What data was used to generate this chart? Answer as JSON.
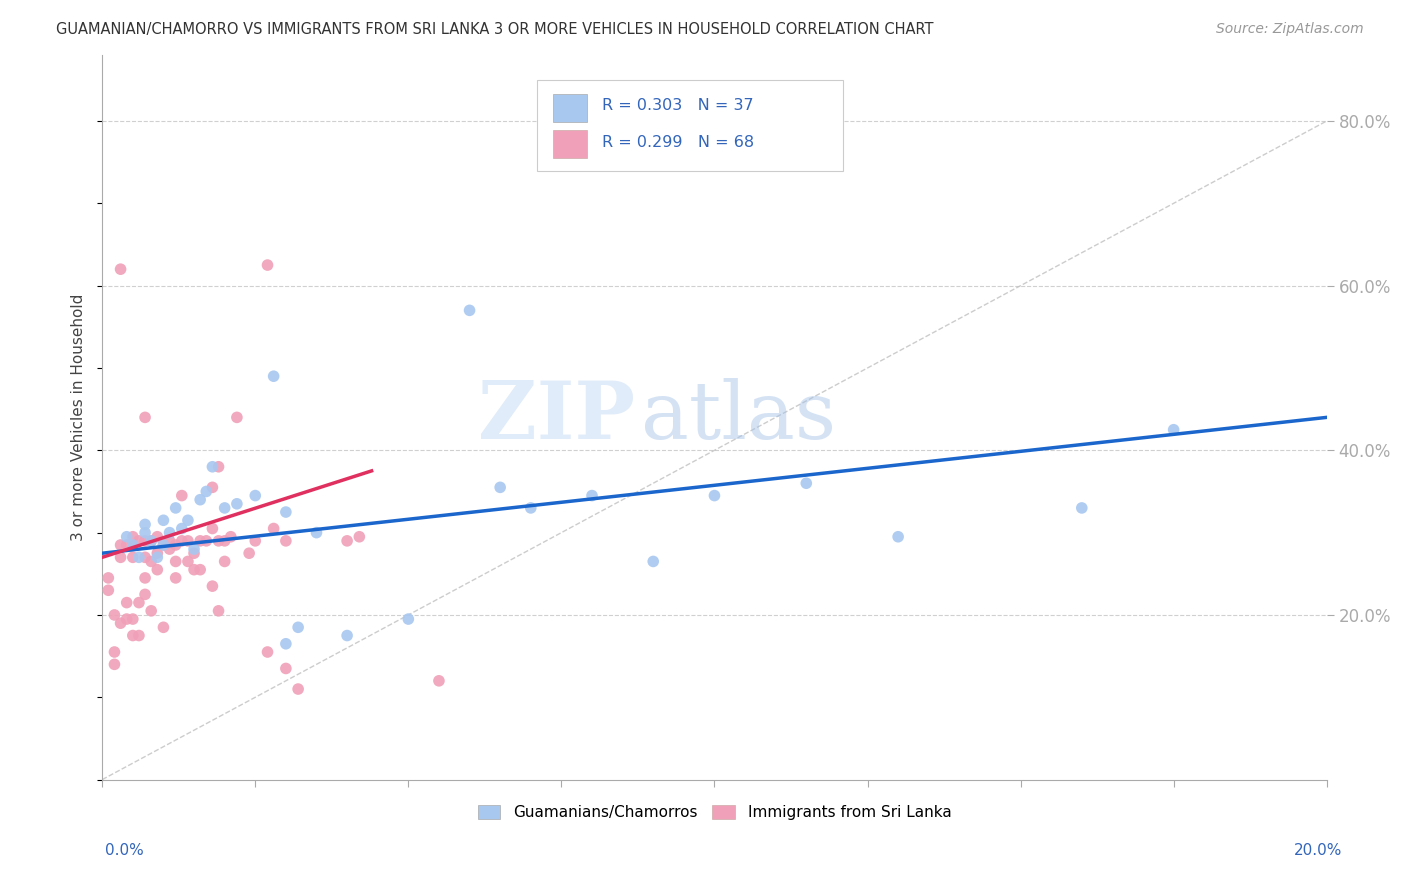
{
  "title": "GUAMANIAN/CHAMORRO VS IMMIGRANTS FROM SRI LANKA 3 OR MORE VEHICLES IN HOUSEHOLD CORRELATION CHART",
  "source": "Source: ZipAtlas.com",
  "ylabel": "3 or more Vehicles in Household",
  "ytick_values": [
    0.2,
    0.4,
    0.6,
    0.8
  ],
  "xmin": 0.0,
  "xmax": 0.2,
  "ymin": 0.0,
  "ymax": 0.88,
  "blue_R": 0.303,
  "blue_N": 37,
  "pink_R": 0.299,
  "pink_N": 68,
  "blue_color": "#a8c8f0",
  "pink_color": "#f0a0b8",
  "blue_line_color": "#1a66cc",
  "pink_line_color": "#e03060",
  "ref_line_color": "#c0c0c0",
  "background_color": "#ffffff",
  "watermark_zip": "ZIP",
  "watermark_atlas": "atlas",
  "blue_scatter_x": [
    0.004,
    0.005,
    0.006,
    0.007,
    0.007,
    0.008,
    0.009,
    0.01,
    0.01,
    0.011,
    0.012,
    0.013,
    0.014,
    0.015,
    0.016,
    0.017,
    0.018,
    0.02,
    0.022,
    0.025,
    0.028,
    0.03,
    0.032,
    0.035,
    0.04,
    0.06,
    0.065,
    0.07,
    0.08,
    0.09,
    0.1,
    0.115,
    0.13,
    0.16,
    0.175,
    0.03,
    0.05
  ],
  "blue_scatter_y": [
    0.295,
    0.285,
    0.27,
    0.3,
    0.31,
    0.29,
    0.27,
    0.285,
    0.315,
    0.3,
    0.33,
    0.305,
    0.315,
    0.28,
    0.34,
    0.35,
    0.38,
    0.33,
    0.335,
    0.345,
    0.49,
    0.165,
    0.185,
    0.3,
    0.175,
    0.57,
    0.355,
    0.33,
    0.345,
    0.265,
    0.345,
    0.36,
    0.295,
    0.33,
    0.425,
    0.325,
    0.195
  ],
  "pink_scatter_x": [
    0.001,
    0.001,
    0.002,
    0.002,
    0.002,
    0.003,
    0.003,
    0.003,
    0.004,
    0.004,
    0.004,
    0.005,
    0.005,
    0.005,
    0.005,
    0.005,
    0.006,
    0.006,
    0.006,
    0.007,
    0.007,
    0.007,
    0.007,
    0.008,
    0.008,
    0.008,
    0.009,
    0.009,
    0.009,
    0.01,
    0.01,
    0.011,
    0.011,
    0.012,
    0.012,
    0.012,
    0.013,
    0.013,
    0.014,
    0.014,
    0.015,
    0.015,
    0.016,
    0.016,
    0.017,
    0.018,
    0.018,
    0.018,
    0.019,
    0.019,
    0.019,
    0.02,
    0.02,
    0.021,
    0.022,
    0.024,
    0.025,
    0.027,
    0.027,
    0.028,
    0.03,
    0.03,
    0.032,
    0.04,
    0.042,
    0.055,
    0.003,
    0.007
  ],
  "pink_scatter_y": [
    0.23,
    0.245,
    0.14,
    0.155,
    0.2,
    0.19,
    0.27,
    0.285,
    0.195,
    0.215,
    0.285,
    0.175,
    0.195,
    0.27,
    0.285,
    0.295,
    0.175,
    0.215,
    0.29,
    0.225,
    0.245,
    0.27,
    0.29,
    0.205,
    0.265,
    0.29,
    0.255,
    0.275,
    0.295,
    0.185,
    0.285,
    0.28,
    0.29,
    0.245,
    0.265,
    0.285,
    0.29,
    0.345,
    0.265,
    0.29,
    0.255,
    0.275,
    0.255,
    0.29,
    0.29,
    0.235,
    0.305,
    0.355,
    0.205,
    0.29,
    0.38,
    0.265,
    0.29,
    0.295,
    0.44,
    0.275,
    0.29,
    0.155,
    0.625,
    0.305,
    0.135,
    0.29,
    0.11,
    0.29,
    0.295,
    0.12,
    0.62,
    0.44
  ],
  "blue_trend_x": [
    0.0,
    0.2
  ],
  "blue_trend_y": [
    0.275,
    0.44
  ],
  "pink_trend_x": [
    0.0,
    0.044
  ],
  "pink_trend_y": [
    0.27,
    0.375
  ],
  "ref_line_x": [
    0.0,
    0.2
  ],
  "ref_line_y": [
    0.0,
    0.8
  ]
}
